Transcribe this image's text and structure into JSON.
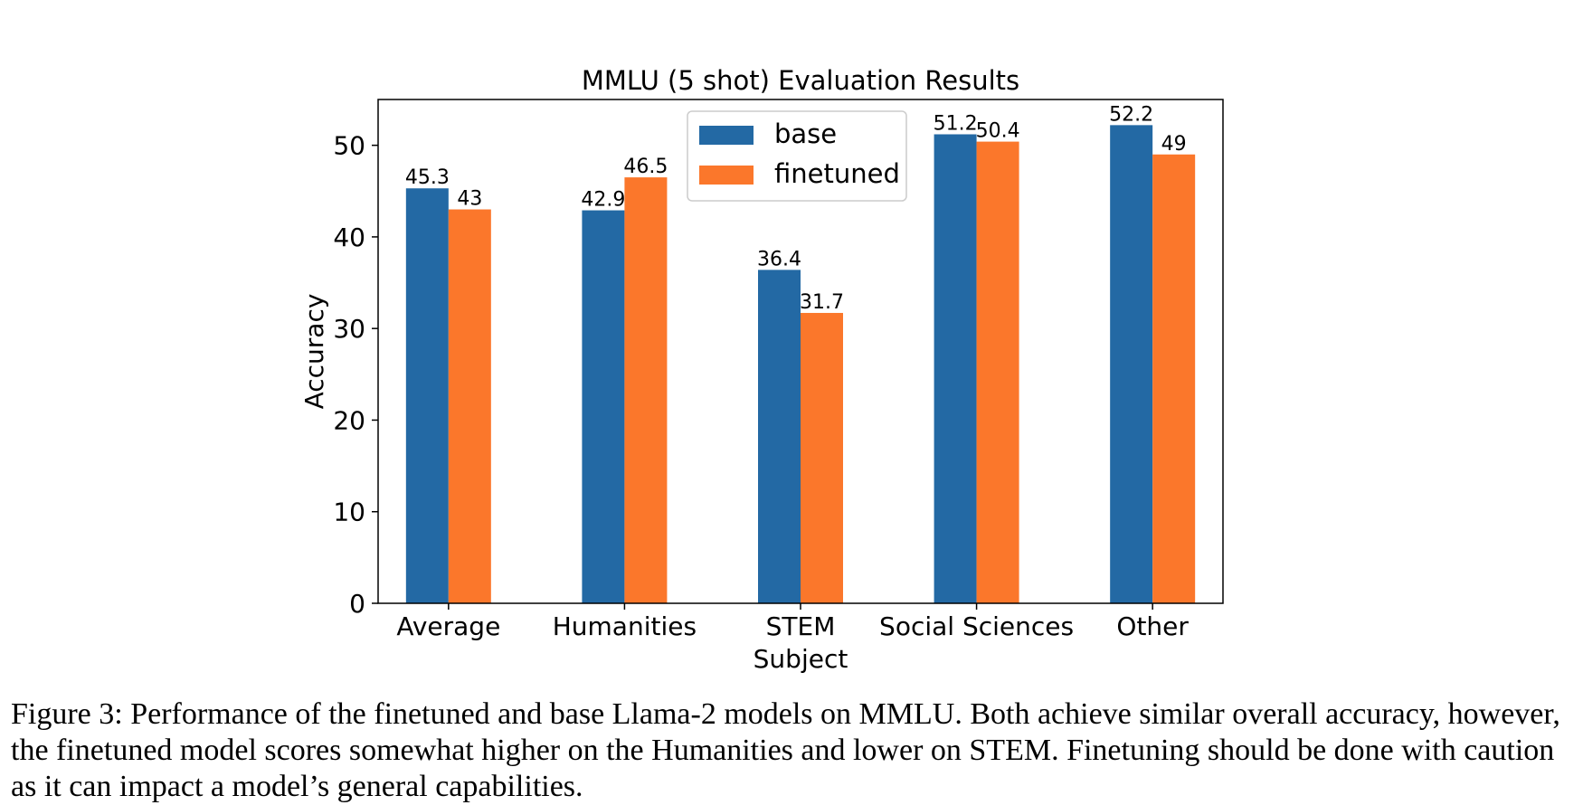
{
  "chart_data": {
    "type": "bar",
    "title": "MMLU (5 shot) Evaluation Results",
    "xlabel": "Subject",
    "ylabel": "Accuracy",
    "categories": [
      "Average",
      "Humanities",
      "STEM",
      "Social Sciences",
      "Other"
    ],
    "series": [
      {
        "name": "base",
        "color": "#2369a4",
        "values": [
          45.3,
          42.9,
          36.4,
          51.2,
          52.2
        ],
        "labels": [
          "45.3",
          "42.9",
          "36.4",
          "51.2",
          "52.2"
        ]
      },
      {
        "name": "finetuned",
        "color": "#fb772b",
        "values": [
          43,
          46.5,
          31.7,
          50.4,
          49
        ],
        "labels": [
          "43",
          "46.5",
          "31.7",
          "50.4",
          "49"
        ]
      }
    ],
    "ylim": [
      0,
      55
    ],
    "yticks": [
      0,
      10,
      20,
      30,
      40,
      50
    ],
    "legend": "top-center",
    "grid": false
  },
  "caption": "Figure 3: Performance of the finetuned and base Llama-2 models on MMLU. Both achieve similar overall accuracy, however, the finetuned model scores somewhat higher on the Humanities and lower on STEM. Finetuning should be done with caution as it can impact a model’s general capabilities."
}
